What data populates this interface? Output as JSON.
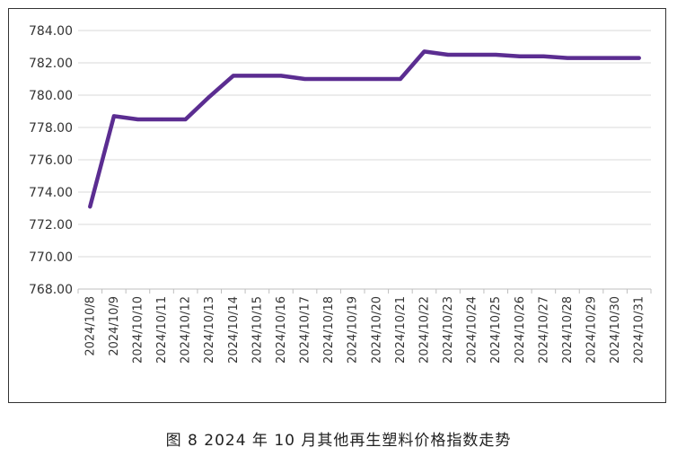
{
  "chart_data": {
    "type": "line",
    "title": "",
    "xlabel": "",
    "ylabel": "",
    "ylim": [
      768,
      784
    ],
    "yticks": [
      "768.00",
      "770.00",
      "772.00",
      "774.00",
      "776.00",
      "778.00",
      "780.00",
      "782.00",
      "784.00"
    ],
    "grid": "horizontal",
    "line_color": "#5b2d91",
    "categories": [
      "2024/10/8",
      "2024/10/9",
      "2024/10/10",
      "2024/10/11",
      "2024/10/12",
      "2024/10/13",
      "2024/10/14",
      "2024/10/15",
      "2024/10/16",
      "2024/10/17",
      "2024/10/18",
      "2024/10/19",
      "2024/10/20",
      "2024/10/21",
      "2024/10/22",
      "2024/10/23",
      "2024/10/24",
      "2024/10/25",
      "2024/10/26",
      "2024/10/27",
      "2024/10/28",
      "2024/10/29",
      "2024/10/30",
      "2024/10/31"
    ],
    "values": [
      773.1,
      778.7,
      778.5,
      778.5,
      778.5,
      779.9,
      781.2,
      781.2,
      781.2,
      781.0,
      781.0,
      781.0,
      781.0,
      781.0,
      782.7,
      782.5,
      782.5,
      782.5,
      782.4,
      782.4,
      782.3,
      782.3,
      782.3,
      782.3
    ]
  },
  "caption": "图 8  2024 年 10 月其他再生塑料价格指数走势"
}
